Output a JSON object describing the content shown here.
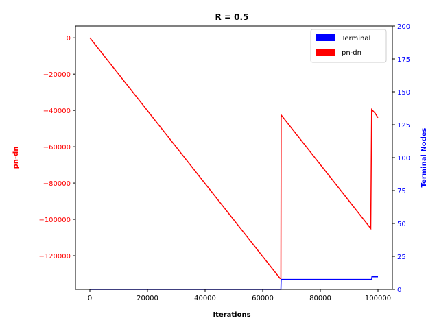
{
  "chart_data": {
    "type": "line",
    "title": "R = 0.5",
    "xlabel": "Iterations",
    "ylabel_left": "pn-dn",
    "ylabel_right": "Terminal Nodes",
    "xlim": [
      -5000,
      105000
    ],
    "ylim_left": [
      -138500,
      6500
    ],
    "ylim_right": [
      0,
      200
    ],
    "x_ticks": [
      0,
      20000,
      40000,
      60000,
      80000,
      100000
    ],
    "y_left_ticks": [
      0,
      -20000,
      -40000,
      -60000,
      -80000,
      -100000,
      -120000
    ],
    "y_right_ticks": [
      0,
      25,
      50,
      75,
      100,
      125,
      150,
      175,
      200
    ],
    "grid": false,
    "legend_position": "top-right",
    "colors": {
      "pn_dn": "#ff0000",
      "terminal": "#0000ff",
      "axis_left": "#ff0000",
      "axis_right": "#0000ff"
    },
    "series": [
      {
        "name": "pn-dn",
        "axis": "left",
        "x": [
          0,
          66000,
          66300,
          66400,
          97500,
          97800,
          99000,
          100000
        ],
        "y": [
          0,
          -132500,
          -132500,
          -42500,
          -105000,
          -39500,
          -41500,
          -44000
        ]
      },
      {
        "name": "Terminal",
        "axis": "right",
        "x": [
          0,
          66300,
          66400,
          97800,
          97900,
          100000
        ],
        "y": [
          0,
          0,
          7.5,
          7.5,
          9.5,
          9.5
        ]
      }
    ],
    "legend": [
      "Terminal",
      "pn-dn"
    ]
  }
}
